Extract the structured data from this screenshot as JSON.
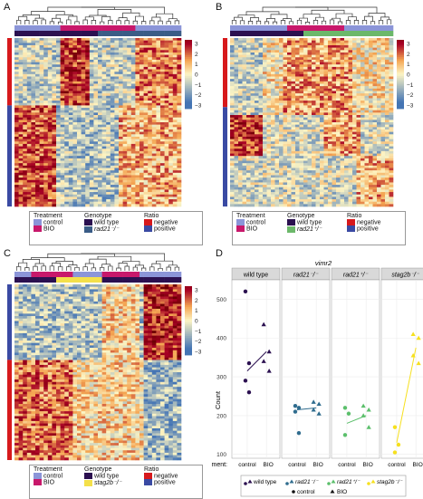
{
  "panels": {
    "A": {
      "letter": "A"
    },
    "B": {
      "letter": "B"
    },
    "C": {
      "letter": "C"
    },
    "D": {
      "letter": "D"
    }
  },
  "colorbar": {
    "ticks": [
      "3",
      "2",
      "1",
      "0",
      "−1",
      "−2",
      "−3"
    ]
  },
  "legendA": {
    "treatment_title": "Treatment",
    "treatment_items": [
      "control",
      "BIO"
    ],
    "genotype_title": "Genotype",
    "genotype_items": [
      "wild type",
      "rad21⁻/⁻"
    ],
    "ratio_title": "Ratio",
    "ratio_items": [
      "negative",
      "positive"
    ]
  },
  "legendB": {
    "treatment_title": "Treatment",
    "treatment_items": [
      "control",
      "BIO"
    ],
    "genotype_title": "Genotype",
    "genotype_items": [
      "wild type",
      "rad21⁺/⁻"
    ],
    "ratio_title": "Ratio",
    "ratio_items": [
      "negative",
      "positive"
    ]
  },
  "legendC": {
    "treatment_title": "Treatment",
    "treatment_items": [
      "control",
      "BIO"
    ],
    "genotype_title": "Genotype",
    "genotype_items": [
      "wild type",
      "stag2b⁻/⁻"
    ],
    "ratio_title": "Ratio",
    "ratio_items": [
      "negative",
      "positive"
    ]
  },
  "colors": {
    "control": "#8b95d8",
    "BIO": "#c8186b",
    "wildtype": "#2b1050",
    "rad21_hom": "#3a5c86",
    "rad21_het": "#6cb86a",
    "stag2b": "#f4e04a",
    "negative": "#d7191c",
    "positive": "#3a4aa3",
    "hm_hi": "#b2182b",
    "hm_mid": "#fdf5c4",
    "hm_lo": "#4575b4",
    "wt_pt": "#2b1050",
    "rad21_hom_pt": "#2f6c8e",
    "rad21_het_pt": "#5bbf6b",
    "stag2b_pt": "#f6e01e"
  },
  "chart_data": {
    "type": "scatter",
    "title": "vimr2",
    "ylabel": "Count",
    "xlabel": "Treatment:",
    "ylim": [
      90,
      550
    ],
    "yticks": [
      100,
      200,
      300,
      400,
      500
    ],
    "facets": [
      {
        "name": "wild type",
        "control": [
          520,
          335,
          290,
          260
        ],
        "bio": [
          435,
          365,
          340,
          315
        ],
        "line": [
          315,
          365
        ]
      },
      {
        "name": "rad21⁻/⁻",
        "control": [
          225,
          220,
          210,
          155
        ],
        "bio": [
          235,
          230,
          215,
          205
        ],
        "line": [
          215,
          220
        ]
      },
      {
        "name": "rad21⁺/⁻",
        "control": [
          220,
          205,
          150
        ],
        "bio": [
          225,
          215,
          200,
          170
        ],
        "line": [
          180,
          200
        ]
      },
      {
        "name": "stag2b⁻/⁻",
        "control": [
          170,
          125,
          105
        ],
        "bio": [
          410,
          400,
          355,
          335
        ],
        "line": [
          130,
          375
        ]
      }
    ],
    "x_categories": [
      "control",
      "BIO"
    ],
    "legend_genotypes": [
      "wild type",
      "rad21⁻/⁻",
      "rad21⁺/⁻",
      "stag2b⁻/⁻"
    ],
    "legend_treatments": [
      "control",
      "BIO"
    ]
  }
}
